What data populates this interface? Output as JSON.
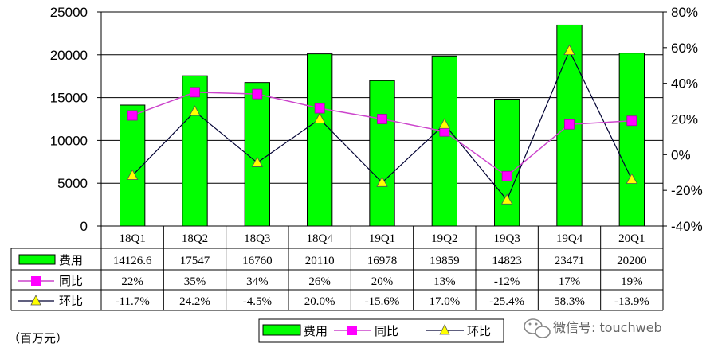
{
  "chart_data": {
    "type": "bar",
    "categories": [
      "18Q1",
      "18Q2",
      "18Q3",
      "18Q4",
      "19Q1",
      "19Q2",
      "19Q3",
      "19Q4",
      "20Q1"
    ],
    "y_left_ticks": [
      "25000",
      "20000",
      "15000",
      "10000",
      "5000",
      "0"
    ],
    "y_right_ticks": [
      "80%",
      "60%",
      "40%",
      "20%",
      "0%",
      "-20%",
      "-40%"
    ],
    "ylim_left": [
      0,
      25000
    ],
    "ylim_right": [
      -40,
      80
    ],
    "grid": true,
    "series": [
      {
        "name": "费用",
        "type": "bar",
        "axis": "left",
        "color": "#00ff00",
        "values": [
          14126.6,
          17547,
          16760,
          20110,
          16978,
          19859,
          14823,
          23471,
          20200
        ],
        "labels": [
          "14126.6",
          "17547",
          "16760",
          "20110",
          "16978",
          "19859",
          "14823",
          "23471",
          "20200"
        ]
      },
      {
        "name": "同比",
        "type": "line",
        "axis": "right",
        "color": "#cc44cc",
        "marker_color": "#ff00ff",
        "values": [
          22,
          35,
          34,
          26,
          20,
          13,
          -12,
          17,
          19
        ],
        "labels": [
          "22%",
          "35%",
          "34%",
          "26%",
          "20%",
          "13%",
          "-12%",
          "17%",
          "19%"
        ]
      },
      {
        "name": "环比",
        "type": "line",
        "axis": "right",
        "color": "#000033",
        "marker_color": "#ffff00",
        "values": [
          -11.7,
          24.2,
          -4.5,
          20.0,
          -15.6,
          17.0,
          -25.4,
          58.3,
          -13.9
        ],
        "labels": [
          "-11.7%",
          "24.2%",
          "-4.5%",
          "20.0%",
          "-15.6%",
          "17.0%",
          "-25.4%",
          "58.3%",
          "-13.9%"
        ]
      }
    ],
    "legend_position": "bottom"
  },
  "unit_label": "（百万元）",
  "watermark": "微信号: touchweb"
}
